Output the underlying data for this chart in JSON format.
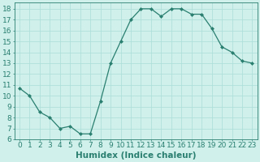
{
  "x": [
    0,
    1,
    2,
    3,
    4,
    5,
    6,
    7,
    8,
    9,
    10,
    11,
    12,
    13,
    14,
    15,
    16,
    17,
    18,
    19,
    20,
    21,
    22,
    23
  ],
  "y": [
    10.7,
    10.0,
    8.5,
    8.0,
    7.0,
    7.2,
    6.5,
    6.5,
    9.5,
    13.0,
    15.0,
    17.0,
    18.0,
    18.0,
    17.3,
    18.0,
    18.0,
    17.5,
    17.5,
    16.2,
    14.5,
    14.0,
    13.2,
    13.0
  ],
  "line_color": "#2a7f70",
  "marker": "D",
  "marker_size": 2.0,
  "line_width": 0.9,
  "xlabel": "Humidex (Indice chaleur)",
  "xlim": [
    -0.5,
    23.5
  ],
  "ylim": [
    6,
    18.6
  ],
  "yticks": [
    6,
    7,
    8,
    9,
    10,
    11,
    12,
    13,
    14,
    15,
    16,
    17,
    18
  ],
  "xticks": [
    0,
    1,
    2,
    3,
    4,
    5,
    6,
    7,
    8,
    9,
    10,
    11,
    12,
    13,
    14,
    15,
    16,
    17,
    18,
    19,
    20,
    21,
    22,
    23
  ],
  "xtick_labels": [
    "0",
    "1",
    "2",
    "3",
    "4",
    "5",
    "6",
    "7",
    "8",
    "9",
    "10",
    "11",
    "12",
    "13",
    "14",
    "15",
    "16",
    "17",
    "18",
    "19",
    "20",
    "21",
    "22",
    "23"
  ],
  "background_color": "#cff0eb",
  "grid_color": "#aaddd6",
  "tick_color": "#2a7f70",
  "label_color": "#2a7f70",
  "xlabel_fontsize": 7.5,
  "tick_fontsize": 6.5
}
